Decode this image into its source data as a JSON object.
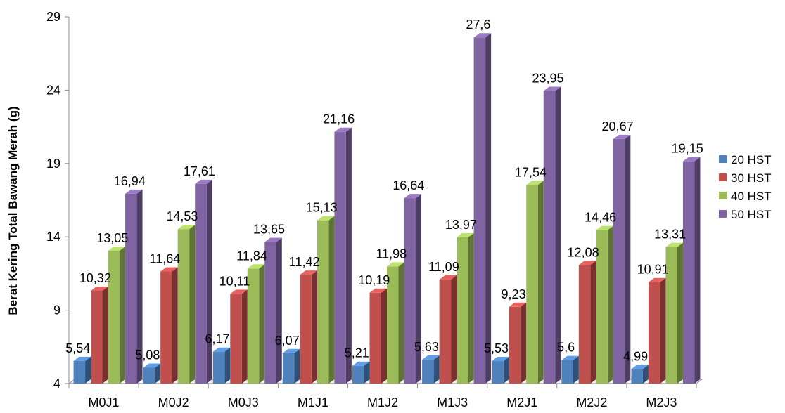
{
  "chart_data": {
    "type": "bar",
    "title": "",
    "xlabel": "",
    "ylabel": "Berat Kering Total Bawang Merah (g)",
    "ylim": [
      4,
      29
    ],
    "yticks": [
      4,
      9,
      14,
      19,
      24,
      29
    ],
    "grid": false,
    "legend_position": "right",
    "categories": [
      "M0J1",
      "M0J2",
      "M0J3",
      "M1J1",
      "M1J2",
      "M1J3",
      "M2J1",
      "M2J2",
      "M2J3"
    ],
    "series": [
      {
        "name": "20 HST",
        "color": "#4F81BD",
        "values": [
          5.54,
          5.08,
          6.17,
          6.07,
          5.21,
          5.63,
          5.53,
          5.6,
          4.99
        ],
        "labels": [
          "5,54",
          "5,08",
          "6,17",
          "6,07",
          "5,21",
          "5,63",
          "5,53",
          "5,6",
          "4,99"
        ]
      },
      {
        "name": "30 HST",
        "color": "#C0504D",
        "values": [
          10.32,
          11.64,
          10.11,
          11.42,
          10.19,
          11.09,
          9.23,
          12.08,
          10.91
        ],
        "labels": [
          "10,32",
          "11,64",
          "10,11",
          "11,42",
          "10,19",
          "11,09",
          "9,23",
          "12,08",
          "10,91"
        ]
      },
      {
        "name": "40 HST",
        "color": "#9BBB59",
        "values": [
          13.05,
          14.53,
          11.84,
          15.13,
          11.98,
          13.97,
          17.54,
          14.46,
          13.31
        ],
        "labels": [
          "13,05",
          "14,53",
          "11,84",
          "15,13",
          "11,98",
          "13,97",
          "17,54",
          "14,46",
          "13,31"
        ]
      },
      {
        "name": "50 HST",
        "color": "#8064A2",
        "values": [
          16.94,
          17.61,
          13.65,
          21.16,
          16.64,
          27.6,
          23.95,
          20.67,
          19.15
        ],
        "labels": [
          "16,94",
          "17,61",
          "13,65",
          "21,16",
          "16,64",
          "27,6",
          "23,95",
          "20,67",
          "19,15"
        ]
      }
    ]
  }
}
